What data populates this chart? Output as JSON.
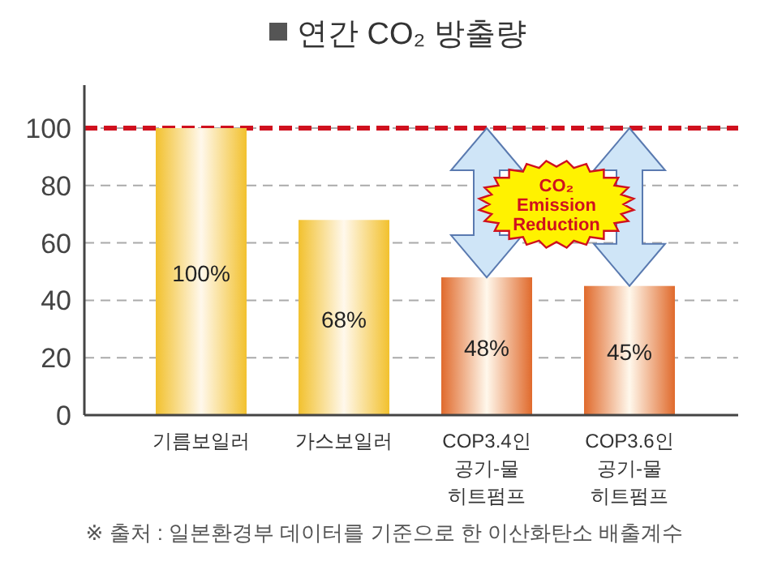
{
  "chart_data": {
    "type": "bar",
    "title": "연간 CO₂ 방출량",
    "categories": [
      "기름보일러",
      "가스보일러",
      "COP3.4인\n공기-물\n히트펌프",
      "COP3.6인\n공기-물\n히트펌프"
    ],
    "values": [
      100,
      68,
      48,
      45
    ],
    "colors": [
      "#f2c12e",
      "#f2c12e",
      "#e06a2c",
      "#e06a2c"
    ],
    "value_labels": [
      "100%",
      "68%",
      "48%",
      "45%"
    ],
    "ylim": [
      0,
      115
    ],
    "yticks": [
      0,
      20,
      40,
      60,
      80,
      100
    ],
    "grid": "y",
    "ref_lines": [
      {
        "axis": "y",
        "value": 100,
        "color": "#d0101e",
        "line_style": "dashed"
      }
    ],
    "annotations": [
      "CO₂ Emission Reduction",
      "※ 출처 : 일본환경부 데이터를 기준으로 한 이산화탄소 배출계수"
    ]
  }
}
